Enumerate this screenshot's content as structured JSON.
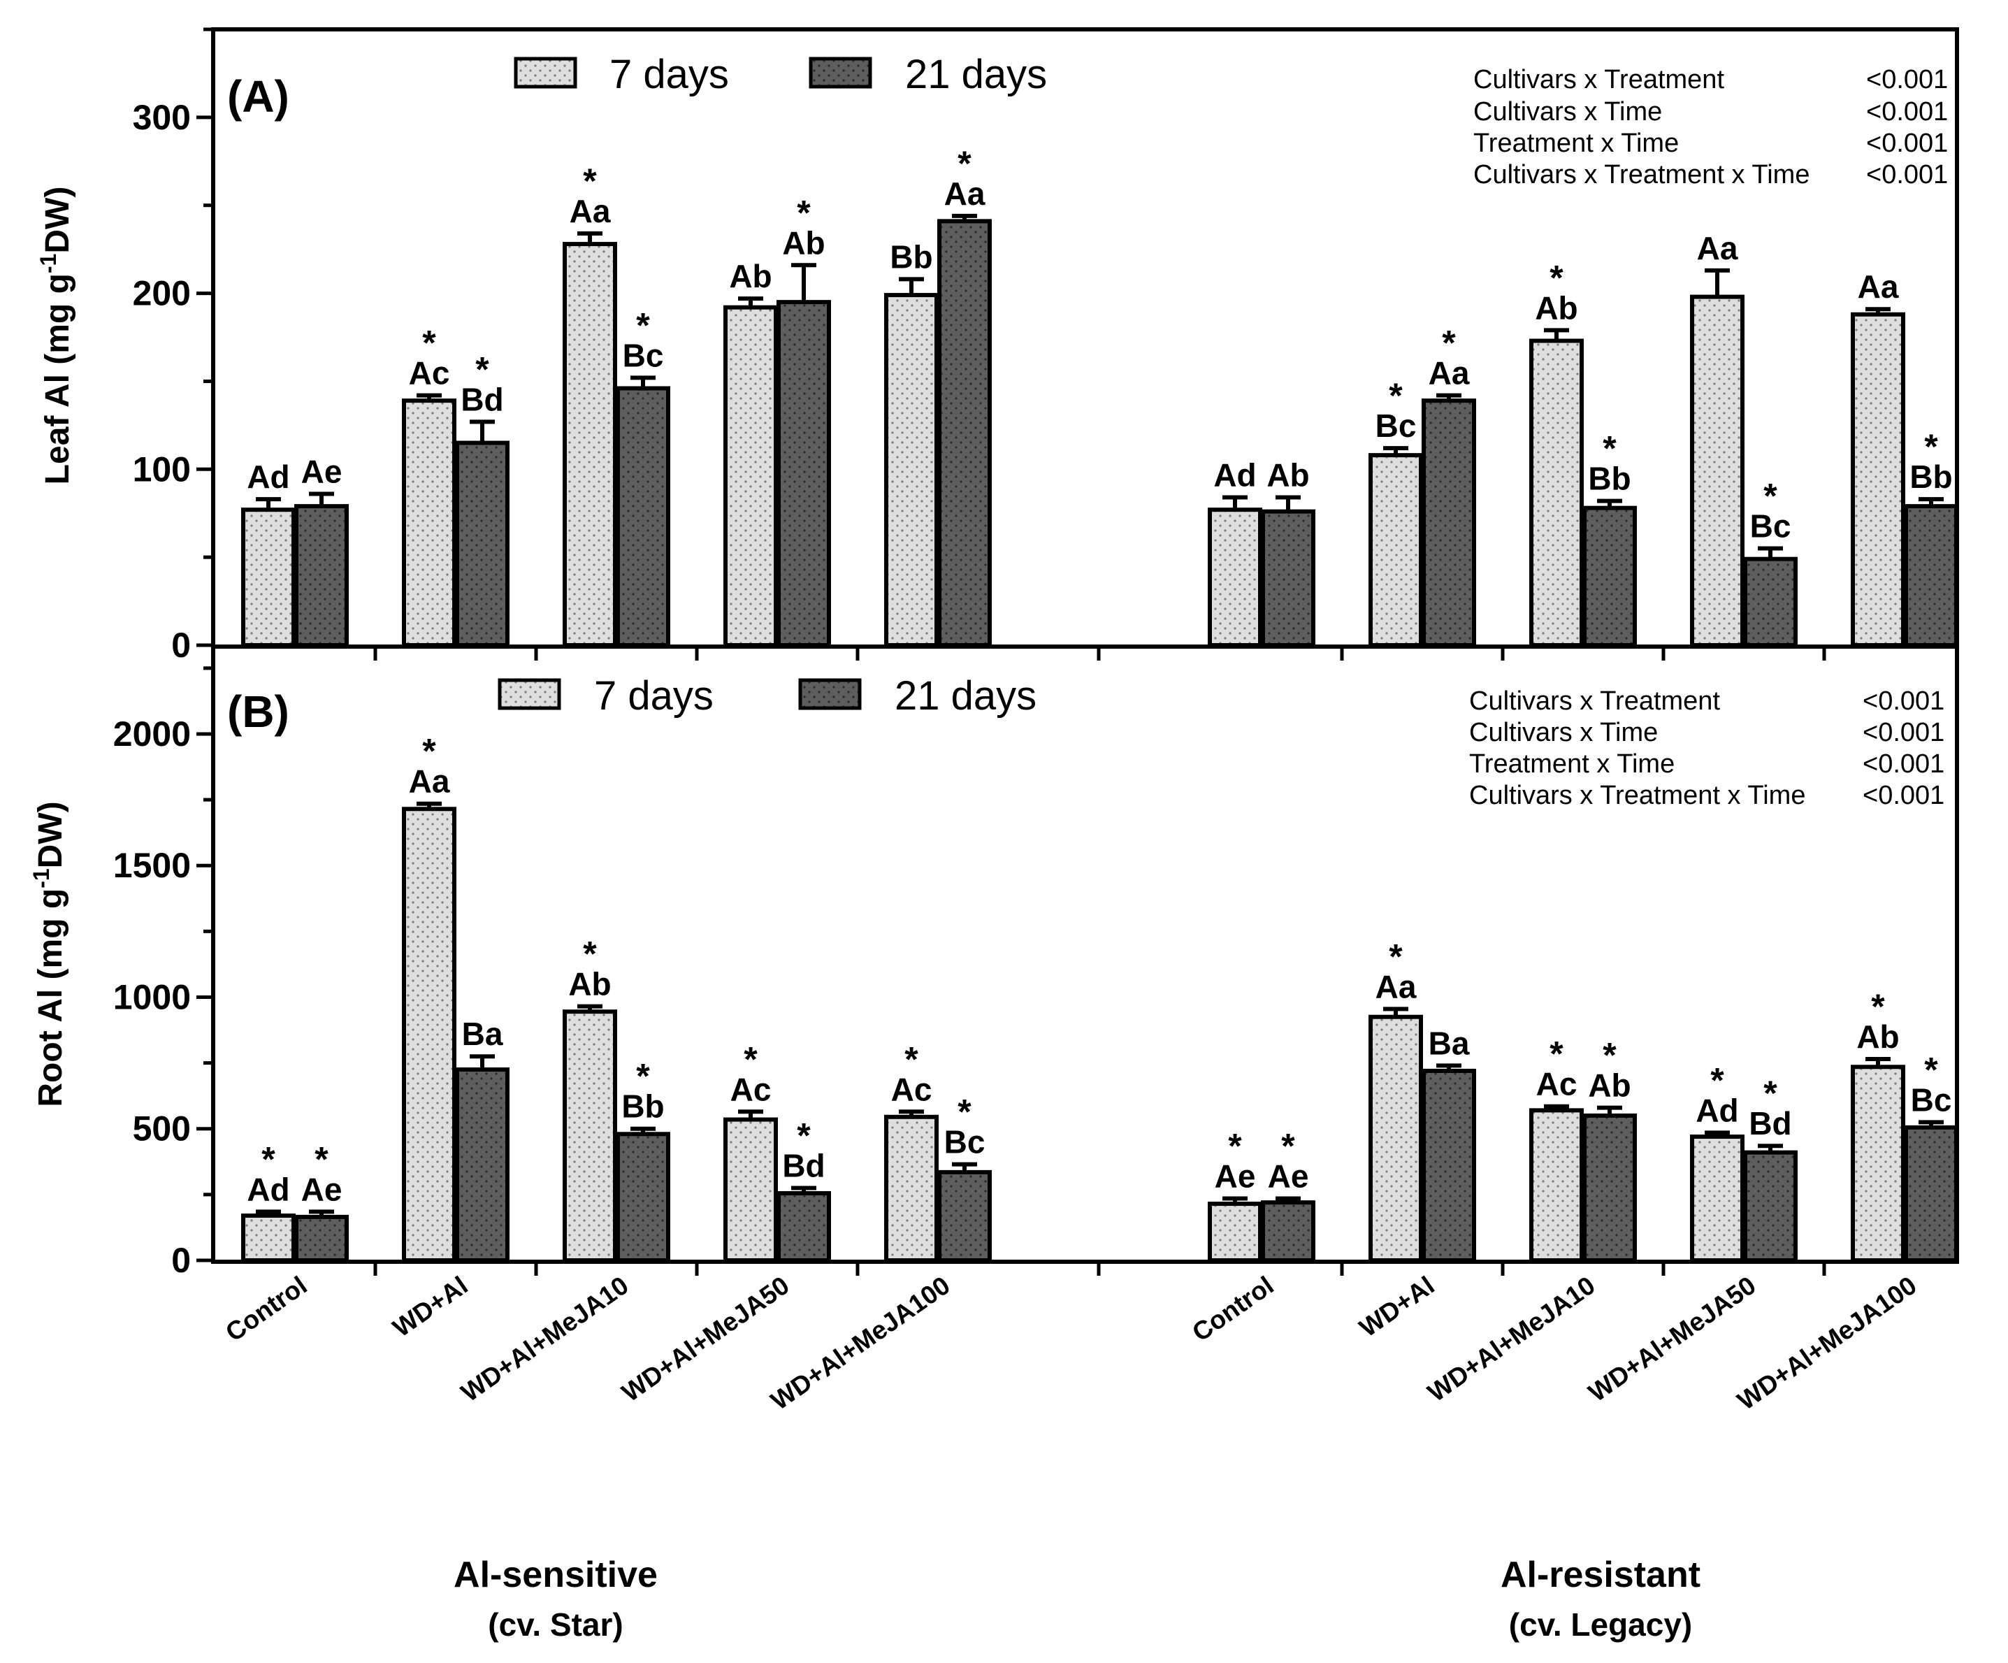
{
  "colors": {
    "day7": "#dedede",
    "day21": "#5e5e5e",
    "axis": "#000000"
  },
  "legend": {
    "series": [
      "7 days",
      "21 days"
    ]
  },
  "groups": [
    {
      "title": "Al-sensitive",
      "subtitle": "(cv. Star)"
    },
    {
      "title": "Al-resistant",
      "subtitle": "(cv. Legacy)"
    }
  ],
  "categories": [
    "Control",
    "WD+Al",
    "WD+Al+MeJA10",
    "WD+Al+MeJA50",
    "WD+Al+MeJA100",
    "Control",
    "WD+Al",
    "WD+Al+MeJA10",
    "WD+Al+MeJA50",
    "WD+Al+MeJA100"
  ],
  "chart_data": [
    {
      "type": "bar",
      "panel": "(A)",
      "ylabel_prefix": "Leaf Al (mg g",
      "ylabel_sup": "-1",
      "ylabel_suffix": "DW)",
      "ylim": [
        0,
        350
      ],
      "yticks": [
        0,
        100,
        200,
        300
      ],
      "stats": [
        {
          "term": "Cultivars x Treatment",
          "p": "<0.001"
        },
        {
          "term": "Cultivars x Time",
          "p": "<0.001"
        },
        {
          "term": "Treatment x Time",
          "p": "<0.001"
        },
        {
          "term": "Cultivars x Treatment x Time",
          "p": "<0.001"
        }
      ],
      "series": [
        {
          "name": "7 days",
          "values": [
            77,
            139,
            228,
            192,
            199,
            77,
            108,
            173,
            198,
            188
          ],
          "errors": [
            6,
            3,
            6,
            5,
            9,
            7,
            4,
            6,
            15,
            3
          ],
          "labels": [
            "Ad",
            "Ac",
            "Aa",
            "Ab",
            "Bb",
            "Ad",
            "Bc",
            "Ab",
            "Aa",
            "Aa"
          ],
          "stars": [
            false,
            true,
            true,
            false,
            false,
            false,
            true,
            true,
            false,
            false
          ]
        },
        {
          "name": "21 days",
          "values": [
            79,
            115,
            146,
            195,
            241,
            76,
            139,
            78,
            49,
            79
          ],
          "errors": [
            7,
            12,
            6,
            21,
            3,
            8,
            3,
            4,
            6,
            4
          ],
          "labels": [
            "Ae",
            "Bd",
            "Bc",
            "Ab",
            "Aa",
            "Ab",
            "Aa",
            "Bb",
            "Bc",
            "Bb"
          ],
          "stars": [
            false,
            true,
            true,
            true,
            true,
            false,
            true,
            true,
            true,
            true
          ]
        }
      ]
    },
    {
      "type": "bar",
      "panel": "(B)",
      "ylabel_prefix": "Root Al (mg g",
      "ylabel_sup": "-1",
      "ylabel_suffix": "DW)",
      "ylim": [
        0,
        2300
      ],
      "yticks": [
        0,
        500,
        1000,
        1500,
        2000
      ],
      "stats": [
        {
          "term": "Cultivars x Treatment",
          "p": "<0.001"
        },
        {
          "term": "Cultivars x Time",
          "p": "<0.001"
        },
        {
          "term": "Treatment x Time",
          "p": "<0.001"
        },
        {
          "term": "Cultivars x Treatment x Time",
          "p": "<0.001"
        }
      ],
      "series": [
        {
          "name": "7 days",
          "values": [
            170,
            1715,
            945,
            535,
            545,
            215,
            925,
            570,
            470,
            735
          ],
          "errors": [
            15,
            20,
            20,
            30,
            20,
            20,
            30,
            15,
            15,
            30
          ],
          "labels": [
            "Ad",
            "Aa",
            "Ab",
            "Ac",
            "Ac",
            "Ae",
            "Aa",
            "Ac",
            "Ad",
            "Ab"
          ],
          "stars": [
            true,
            true,
            true,
            true,
            true,
            true,
            true,
            true,
            true,
            true
          ]
        },
        {
          "name": "21 days",
          "values": [
            165,
            725,
            480,
            255,
            335,
            220,
            720,
            550,
            410,
            505
          ],
          "errors": [
            20,
            50,
            20,
            20,
            30,
            15,
            20,
            30,
            25,
            20
          ],
          "labels": [
            "Ae",
            "Ba",
            "Bb",
            "Bd",
            "Bc",
            "Ae",
            "Ba",
            "Ab",
            "Bd",
            "Bc"
          ],
          "stars": [
            true,
            false,
            true,
            true,
            true,
            true,
            false,
            true,
            true,
            true
          ]
        }
      ]
    }
  ]
}
